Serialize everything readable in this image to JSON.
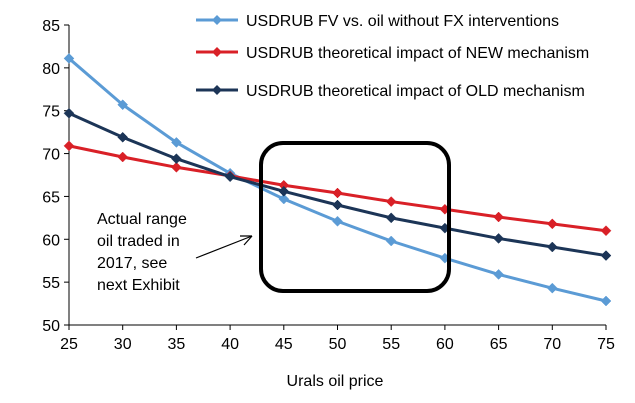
{
  "chart_data": {
    "type": "line",
    "title": "",
    "xlabel": "Urals oil price",
    "ylabel": "",
    "x": [
      25,
      30,
      35,
      40,
      45,
      50,
      55,
      60,
      65,
      70,
      75
    ],
    "xlim": [
      25,
      75
    ],
    "ylim": [
      50,
      85
    ],
    "yticks": [
      50,
      55,
      60,
      65,
      70,
      75,
      80,
      85
    ],
    "grid": false,
    "legend_position": "top-right",
    "series": [
      {
        "name": "USDRUB FV vs. oil without FX interventions",
        "color": "#5b9bd5",
        "marker": "diamond",
        "values": [
          81.1,
          75.7,
          71.3,
          67.7,
          64.7,
          62.1,
          59.8,
          57.8,
          55.9,
          54.3,
          52.8
        ]
      },
      {
        "name": "USDRUB theoretical impact of NEW mechanism",
        "color": "#d92027",
        "marker": "diamond",
        "values": [
          70.9,
          69.6,
          68.4,
          67.4,
          66.3,
          65.4,
          64.4,
          63.5,
          62.6,
          61.8,
          61.0
        ]
      },
      {
        "name": "USDRUB theoretical impact of OLD mechanism",
        "color": "#1c3557",
        "marker": "diamond",
        "values": [
          74.7,
          71.9,
          69.4,
          67.3,
          65.6,
          64.0,
          62.5,
          61.3,
          60.1,
          59.1,
          58.1
        ]
      }
    ],
    "annotation": {
      "lines": [
        "Actual range",
        "oil traded in",
        "2017, see",
        "next Exhibit"
      ],
      "highlight_x_range": [
        45,
        60
      ]
    }
  }
}
